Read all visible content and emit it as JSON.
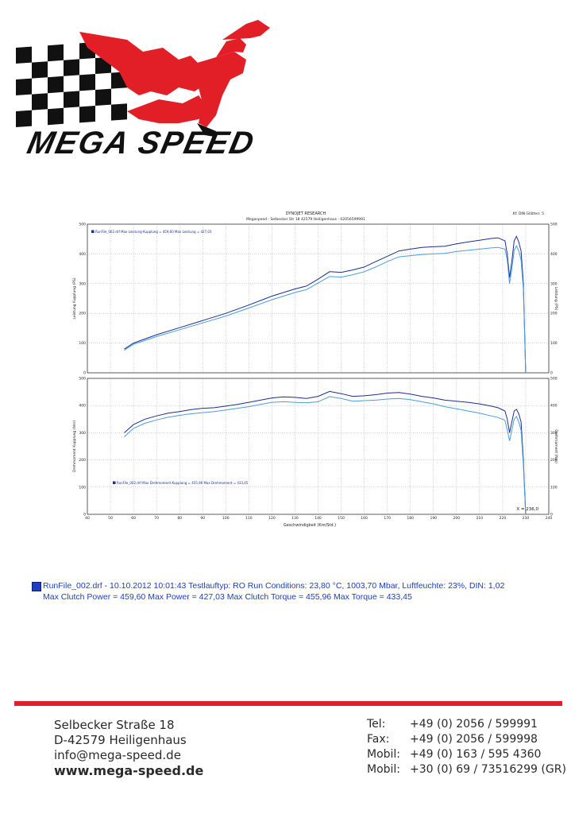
{
  "brand": {
    "name": "MEGA SPEED"
  },
  "chart_header": {
    "title": "DYNOJET RESEARCH",
    "subtitle": "Megaspeed - Selbecker Str 18 42579 Heiligenhaus - 02056599991",
    "smoothing": "Kf: DIN  Glätten: 5"
  },
  "chart_data": [
    {
      "type": "line",
      "title": "",
      "xlabel": "Geschwindigkeit (Km/Std.)",
      "ylabel": "Leistung Kupplung (PS)",
      "ylabel_right": "Leistung (PS)",
      "xlim": [
        40,
        240
      ],
      "ylim": [
        0,
        500
      ],
      "y_ticks": [
        0,
        100,
        200,
        300,
        400,
        500
      ],
      "grid": true,
      "legend": "RunFile_002.drf Max Leistung-Kupplung = 459,60   Max Leistung = 427,03",
      "series": [
        {
          "name": "Leistung-Kupplung",
          "color": "#1b2f8f",
          "points": [
            [
              56,
              80
            ],
            [
              60,
              100
            ],
            [
              70,
              128
            ],
            [
              80,
              152
            ],
            [
              90,
              176
            ],
            [
              100,
              200
            ],
            [
              110,
              228
            ],
            [
              120,
              258
            ],
            [
              125,
              270
            ],
            [
              130,
              282
            ],
            [
              135,
              292
            ],
            [
              140,
              315
            ],
            [
              145,
              340
            ],
            [
              150,
              338
            ],
            [
              155,
              346
            ],
            [
              160,
              356
            ],
            [
              165,
              374
            ],
            [
              170,
              392
            ],
            [
              175,
              410
            ],
            [
              180,
              416
            ],
            [
              185,
              422
            ],
            [
              190,
              424
            ],
            [
              195,
              426
            ],
            [
              200,
              434
            ],
            [
              205,
              440
            ],
            [
              210,
              446
            ],
            [
              215,
              452
            ],
            [
              218,
              454
            ],
            [
              221,
              444
            ],
            [
              222,
              400
            ],
            [
              223,
              320
            ],
            [
              224,
              376
            ],
            [
              225,
              444
            ],
            [
              226,
              459
            ],
            [
              227,
              440
            ],
            [
              228,
              410
            ],
            [
              229,
              300
            ],
            [
              230,
              0
            ]
          ]
        },
        {
          "name": "Leistung",
          "color": "#4a9ce0",
          "points": [
            [
              56,
              76
            ],
            [
              60,
              96
            ],
            [
              70,
              122
            ],
            [
              80,
              145
            ],
            [
              90,
              168
            ],
            [
              100,
              191
            ],
            [
              110,
              218
            ],
            [
              120,
              246
            ],
            [
              125,
              258
            ],
            [
              130,
              270
            ],
            [
              135,
              280
            ],
            [
              140,
              302
            ],
            [
              145,
              324
            ],
            [
              150,
              322
            ],
            [
              155,
              330
            ],
            [
              160,
              340
            ],
            [
              165,
              356
            ],
            [
              170,
              374
            ],
            [
              175,
              390
            ],
            [
              180,
              394
            ],
            [
              185,
              398
            ],
            [
              190,
              400
            ],
            [
              195,
              402
            ],
            [
              200,
              408
            ],
            [
              205,
              412
            ],
            [
              210,
              416
            ],
            [
              215,
              420
            ],
            [
              218,
              422
            ],
            [
              221,
              416
            ],
            [
              222,
              380
            ],
            [
              223,
              300
            ],
            [
              224,
              350
            ],
            [
              225,
              412
            ],
            [
              226,
              427
            ],
            [
              227,
              410
            ],
            [
              228,
              380
            ],
            [
              229,
              280
            ],
            [
              230,
              0
            ]
          ]
        }
      ]
    },
    {
      "type": "line",
      "title": "",
      "xlabel": "Geschwindigkeit (Km/Std.)",
      "ylabel": "Drehmoment Kupplung (Nm)",
      "ylabel_right": "Drehmoment (Nm)",
      "xlim": [
        40,
        240
      ],
      "ylim": [
        0,
        500
      ],
      "y_ticks": [
        0,
        100,
        200,
        300,
        400,
        500
      ],
      "grid": true,
      "legend": "RunFile_002.drf Max Drehmoment-Kupplung = 455,96   Max Drehmoment = 433,45",
      "annotation": "X = 236,0",
      "series": [
        {
          "name": "Drehmoment-Kupplung",
          "color": "#1b2f8f",
          "points": [
            [
              56,
              300
            ],
            [
              60,
              330
            ],
            [
              65,
              350
            ],
            [
              70,
              362
            ],
            [
              75,
              372
            ],
            [
              80,
              378
            ],
            [
              85,
              385
            ],
            [
              90,
              390
            ],
            [
              95,
              392
            ],
            [
              100,
              398
            ],
            [
              105,
              404
            ],
            [
              110,
              412
            ],
            [
              115,
              420
            ],
            [
              120,
              428
            ],
            [
              125,
              432
            ],
            [
              130,
              430
            ],
            [
              135,
              426
            ],
            [
              140,
              434
            ],
            [
              145,
              452
            ],
            [
              150,
              444
            ],
            [
              155,
              434
            ],
            [
              160,
              436
            ],
            [
              165,
              440
            ],
            [
              170,
              446
            ],
            [
              175,
              448
            ],
            [
              180,
              442
            ],
            [
              185,
              434
            ],
            [
              190,
              428
            ],
            [
              195,
              420
            ],
            [
              200,
              416
            ],
            [
              205,
              412
            ],
            [
              210,
              406
            ],
            [
              215,
              398
            ],
            [
              218,
              392
            ],
            [
              221,
              380
            ],
            [
              222,
              350
            ],
            [
              223,
              300
            ],
            [
              224,
              340
            ],
            [
              225,
              380
            ],
            [
              226,
              386
            ],
            [
              227,
              370
            ],
            [
              228,
              340
            ],
            [
              229,
              200
            ],
            [
              230,
              0
            ]
          ]
        },
        {
          "name": "Drehmoment",
          "color": "#4a9ce0",
          "points": [
            [
              56,
              285
            ],
            [
              60,
              316
            ],
            [
              65,
              335
            ],
            [
              70,
              347
            ],
            [
              75,
              357
            ],
            [
              80,
              364
            ],
            [
              85,
              370
            ],
            [
              90,
              374
            ],
            [
              95,
              378
            ],
            [
              100,
              384
            ],
            [
              105,
              390
            ],
            [
              110,
              396
            ],
            [
              115,
              404
            ],
            [
              120,
              412
            ],
            [
              125,
              414
            ],
            [
              130,
              412
            ],
            [
              135,
              410
            ],
            [
              140,
              414
            ],
            [
              145,
              433
            ],
            [
              150,
              426
            ],
            [
              155,
              416
            ],
            [
              160,
              418
            ],
            [
              165,
              420
            ],
            [
              170,
              424
            ],
            [
              175,
              426
            ],
            [
              180,
              422
            ],
            [
              185,
              414
            ],
            [
              190,
              406
            ],
            [
              195,
              396
            ],
            [
              200,
              388
            ],
            [
              205,
              380
            ],
            [
              210,
              372
            ],
            [
              215,
              362
            ],
            [
              218,
              356
            ],
            [
              221,
              346
            ],
            [
              222,
              310
            ],
            [
              223,
              270
            ],
            [
              224,
              310
            ],
            [
              225,
              350
            ],
            [
              226,
              360
            ],
            [
              227,
              340
            ],
            [
              228,
              310
            ],
            [
              229,
              180
            ],
            [
              230,
              0
            ]
          ]
        }
      ]
    }
  ],
  "run_info": {
    "line1": "RunFile_002.drf - 10.10.2012 10:01:43  Testlauftyp: RO  Run Conditions: 23,80 °C, 1003,70 Mbar,  Luftfeuchte: 23%, DIN: 1,02",
    "line2": "Max Clutch Power = 459,60  Max Power = 427,03  Max Clutch Torque = 455,96  Max Torque = 433,45"
  },
  "footer": {
    "street": "Selbecker Straße 18",
    "city": "D-42579  Heiligenhaus",
    "email": "info@mega-speed.de",
    "web": "www.mega-speed.de",
    "contacts": [
      {
        "label": "Tel:",
        "value": "+49 (0) 2056 / 599991"
      },
      {
        "label": "Fax:",
        "value": "+49 (0) 2056 / 599998"
      },
      {
        "label": "Mobil:",
        "value": "+49 (0) 163 / 595 4360"
      },
      {
        "label": "Mobil:",
        "value": "+30 (0) 69 / 73516299 (GR)"
      }
    ]
  },
  "colors": {
    "accent_red": "#e21f26",
    "dark_blue": "#1b2f8f",
    "light_blue": "#4a9ce0"
  }
}
